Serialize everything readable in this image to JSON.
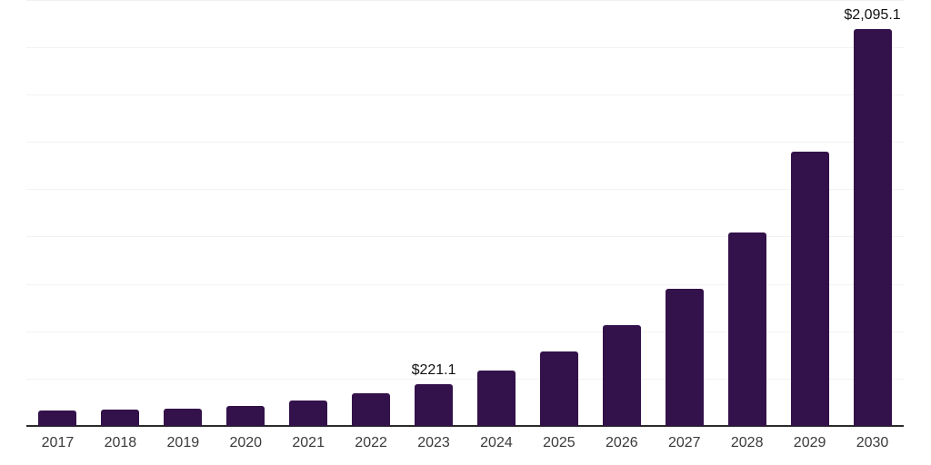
{
  "chart_data": {
    "type": "bar",
    "title": "",
    "xlabel": "",
    "ylabel": "",
    "categories": [
      "2017",
      "2018",
      "2019",
      "2020",
      "2021",
      "2022",
      "2023",
      "2024",
      "2025",
      "2026",
      "2027",
      "2028",
      "2029",
      "2030"
    ],
    "values": [
      80,
      88,
      92,
      107,
      133,
      172,
      221.1,
      291,
      392,
      530,
      723,
      1020,
      1450,
      2095.1
    ],
    "data_labels": [
      {
        "category": "2023",
        "text": "$221.1"
      },
      {
        "category": "2030",
        "text": "$2,095.1"
      }
    ],
    "ylim": [
      0,
      2253
    ],
    "gridline_interval": 250,
    "grid": "horizontal",
    "legend": "none",
    "colors": {
      "bar": "#33114a",
      "gridline": "#f2f2f2",
      "axis_line": "#2b2b2b",
      "tick_label": "#3a3a3a",
      "data_label": "#111111",
      "background": "#ffffff"
    }
  }
}
